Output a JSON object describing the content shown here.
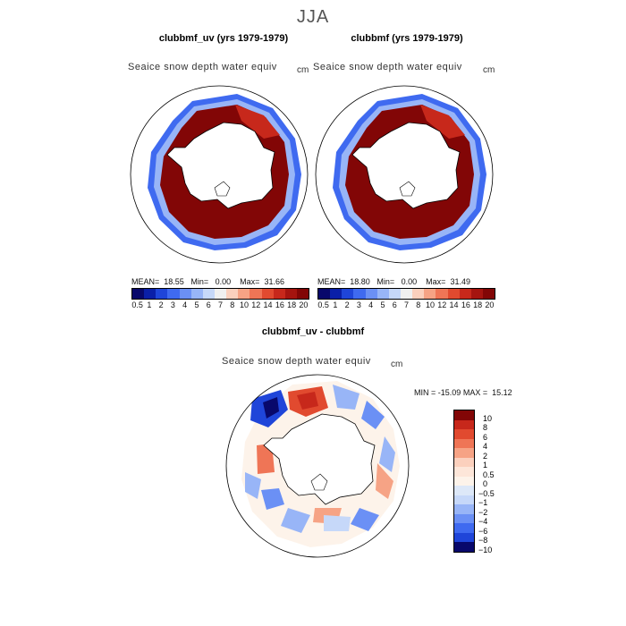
{
  "season": "JJA",
  "chart_data": [
    {
      "type": "heatmap",
      "title": "clubbmf_uv (yrs 1979-1979)",
      "subtitle": "Seaice snow depth water equiv",
      "units": "cm",
      "stats": {
        "mean_label": "MEAN=",
        "mean": "18.55",
        "min_label": "Min=",
        "min": "0.00",
        "max_label": "Max=",
        "max": "31.66"
      },
      "colorbar_ticks": [
        "0.5",
        "1",
        "2",
        "3",
        "4",
        "5",
        "6",
        "7",
        "8",
        "10",
        "12",
        "14",
        "16",
        "18",
        "20"
      ],
      "projection": "south-polar stereographic"
    },
    {
      "type": "heatmap",
      "title": "clubbmf (yrs 1979-1979)",
      "subtitle": "Seaice snow depth water equiv",
      "units": "cm",
      "stats": {
        "mean_label": "MEAN=",
        "mean": "18.80",
        "min_label": "Min=",
        "min": "0.00",
        "max_label": "Max=",
        "max": "31.49"
      },
      "colorbar_ticks": [
        "0.5",
        "1",
        "2",
        "3",
        "4",
        "5",
        "6",
        "7",
        "8",
        "10",
        "12",
        "14",
        "16",
        "18",
        "20"
      ],
      "projection": "south-polar stereographic"
    },
    {
      "type": "heatmap",
      "title": "clubbmf_uv - clubbmf",
      "subtitle": "Seaice snow depth water equiv",
      "units": "cm",
      "stats": {
        "min_label": "MIN =",
        "min": "-15.09",
        "max_label": "MAX =",
        "max": "15.12"
      },
      "colorbar_ticks": [
        "10",
        "8",
        "6",
        "4",
        "2",
        "1",
        "0.5",
        "0",
        "−0.5",
        "−1",
        "−2",
        "−4",
        "−6",
        "−8",
        "−10"
      ],
      "projection": "south-polar stereographic"
    }
  ],
  "colors": {
    "abs_scale": [
      "#08086b",
      "#0a1fa8",
      "#1f45d9",
      "#3f6af0",
      "#6b90f5",
      "#98b5f7",
      "#c6d8f9",
      "#f0f0f0",
      "#fbd0bd",
      "#f6a385",
      "#ef7556",
      "#e14a2f",
      "#c7281b",
      "#a5140f",
      "#820606"
    ],
    "diff_scale": [
      "#820606",
      "#c7281b",
      "#e14a2f",
      "#ef7556",
      "#f6a385",
      "#fbd0bd",
      "#fde6d9",
      "#fdf3ea",
      "#dde8f8",
      "#c6d8f9",
      "#98b5f7",
      "#6b90f5",
      "#3f6af0",
      "#1f45d9",
      "#08086b"
    ]
  }
}
